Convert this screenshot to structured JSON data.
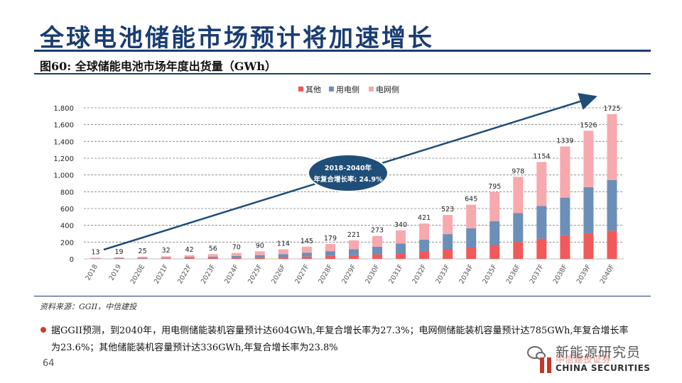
{
  "slide": {
    "title": "全球电池储能市场预计将加速增长",
    "figure_caption": "图60: 全球储能电池市场年度出货量（GWh）",
    "source": "资料来源：GGII，中信建投",
    "note": "据GGII预测，到2040年，用电侧储能装机容量预计达604GWh,年复合增长率为27.3%；电网侧储能装机容量预计达785GWh,年复合增长率为23.6%；其他储能装机容量预计达336GWh,年复合增长率为23.8%",
    "page_number": "64",
    "brand": {
      "wechat_name": "新能源研究员",
      "logo_cn": "中信建投证券",
      "logo_en": "CHINA SECURITIES"
    }
  },
  "colors": {
    "title": "#1a3d72",
    "other": "#f05a5a",
    "user_side": "#6b8fb8",
    "grid_side": "#f7a9ae",
    "arrow": "#1f4e79",
    "annotation_bg": "#1f4e79"
  },
  "chart_data": {
    "type": "bar",
    "stacked": true,
    "title": "全球储能电池市场年度出货量（GWh）",
    "categories": [
      "2018",
      "2019",
      "2020E",
      "2021F",
      "2022F",
      "2023F",
      "2024F",
      "2025F",
      "2026F",
      "2027F",
      "2028F",
      "2029F",
      "2030F",
      "2031F",
      "2032F",
      "2033F",
      "2034F",
      "2035F",
      "2036F",
      "2037F",
      "2038F",
      "2039F",
      "2040F"
    ],
    "totals": [
      13,
      19,
      25,
      32,
      42,
      56,
      70,
      90,
      114,
      145,
      179,
      221,
      273,
      340,
      421,
      523,
      645,
      795,
      978,
      1154,
      1339,
      1526,
      1725
    ],
    "series": [
      {
        "name": "其他",
        "color_key": "other",
        "values": [
          3,
          4,
          5,
          6,
          9,
          11,
          14,
          18,
          22,
          28,
          35,
          44,
          54,
          68,
          85,
          110,
          135,
          165,
          200,
          240,
          280,
          305,
          336
        ]
      },
      {
        "name": "用电侧",
        "color_key": "user_side",
        "values": [
          3,
          5,
          7,
          9,
          12,
          16,
          20,
          27,
          35,
          46,
          57,
          72,
          90,
          115,
          145,
          185,
          230,
          285,
          345,
          390,
          450,
          550,
          604
        ]
      },
      {
        "name": "电网侧",
        "color_key": "grid_side",
        "values": [
          7,
          10,
          13,
          17,
          21,
          29,
          36,
          45,
          57,
          71,
          87,
          105,
          129,
          157,
          191,
          228,
          280,
          345,
          433,
          524,
          609,
          671,
          785
        ]
      }
    ],
    "ylim": [
      0,
      1800
    ],
    "yticks": [
      0,
      200,
      400,
      600,
      800,
      1000,
      1200,
      1400,
      1600,
      1800
    ],
    "ytick_labels": [
      "0",
      "200",
      "400",
      "600",
      "800",
      "1,000",
      "1,200",
      "1,400",
      "1,600",
      "1,800"
    ],
    "legend_position": "top-right",
    "gridlines": "dashed",
    "annotation": {
      "line1": "2018-2040年",
      "line2": "年复合增长率: 24.9%"
    }
  }
}
